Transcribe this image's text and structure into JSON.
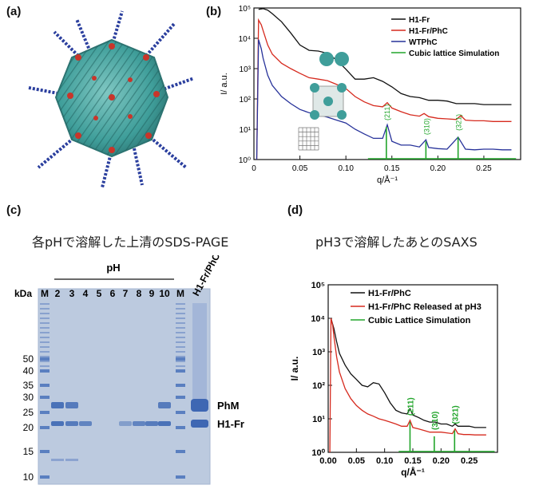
{
  "panels": {
    "a": "(a)",
    "b": "(b)",
    "c": "(c)",
    "d": "(d)"
  },
  "colors": {
    "black": "#111111",
    "red": "#d62a1e",
    "blue": "#27329a",
    "green": "#22a52b",
    "gel_bg": "#b9c8dd",
    "band": "#4a72b8"
  },
  "chart_data": [
    {
      "panel": "b",
      "type": "line",
      "xlabel": "q/Å⁻¹",
      "ylabel": "I/ a.u.",
      "yscale": "log",
      "xlim": [
        0,
        0.29
      ],
      "ylim": [
        1,
        100000
      ],
      "xticks": [
        "0",
        "0.05",
        "0.10",
        "0.15",
        "0.20",
        "0.25"
      ],
      "yticks": [
        "10⁰",
        "10¹",
        "10²",
        "10³",
        "10⁴",
        "10⁵"
      ],
      "legend_position": "top-right",
      "series": [
        {
          "name": "H1-Fr",
          "color": "#111111",
          "x": [
            0.005,
            0.01,
            0.015,
            0.02,
            0.03,
            0.04,
            0.05,
            0.06,
            0.07,
            0.08,
            0.09,
            0.1,
            0.11,
            0.12,
            0.13,
            0.14,
            0.15,
            0.16,
            0.17,
            0.18,
            0.19,
            0.2,
            0.21,
            0.22,
            0.23,
            0.24,
            0.25,
            0.26,
            0.27,
            0.28
          ],
          "y": [
            90000,
            95000,
            85000,
            65000,
            35000,
            15000,
            6000,
            4000,
            3800,
            3200,
            1900,
            950,
            450,
            450,
            500,
            380,
            250,
            150,
            120,
            110,
            90,
            90,
            85,
            70,
            70,
            70,
            65,
            65,
            65,
            65
          ]
        },
        {
          "name": "H1-Fr/PhC",
          "color": "#d62a1e",
          "x": [
            0.003,
            0.005,
            0.008,
            0.01,
            0.015,
            0.02,
            0.03,
            0.04,
            0.05,
            0.06,
            0.07,
            0.08,
            0.09,
            0.1,
            0.11,
            0.12,
            0.13,
            0.14,
            0.145,
            0.15,
            0.16,
            0.17,
            0.18,
            0.185,
            0.19,
            0.2,
            0.21,
            0.22,
            0.225,
            0.23,
            0.24,
            0.25,
            0.26,
            0.27,
            0.28
          ],
          "y": [
            1,
            40000,
            28000,
            18000,
            6000,
            3000,
            1500,
            1000,
            700,
            500,
            450,
            400,
            300,
            220,
            120,
            80,
            60,
            55,
            75,
            50,
            38,
            30,
            27,
            33,
            26,
            23,
            22,
            21,
            28,
            20,
            19,
            19,
            18,
            18,
            18
          ]
        },
        {
          "name": "WTPhC",
          "color": "#27329a",
          "x": [
            0.003,
            0.005,
            0.008,
            0.01,
            0.015,
            0.02,
            0.03,
            0.04,
            0.05,
            0.06,
            0.07,
            0.08,
            0.09,
            0.1,
            0.11,
            0.12,
            0.13,
            0.14,
            0.145,
            0.15,
            0.16,
            0.17,
            0.18,
            0.187,
            0.19,
            0.2,
            0.21,
            0.222,
            0.23,
            0.24,
            0.25,
            0.26,
            0.27,
            0.28
          ],
          "y": [
            1,
            9000,
            4500,
            2200,
            600,
            280,
            120,
            70,
            45,
            35,
            30,
            25,
            20,
            16,
            10,
            7,
            5,
            5,
            14,
            4,
            3,
            3,
            2.6,
            4.5,
            2.5,
            2.3,
            2.2,
            5.5,
            2.2,
            2.1,
            2.2,
            2.2,
            2.1,
            2.1
          ]
        },
        {
          "name": "Cubic lattice Simulation",
          "color": "#22a52b",
          "kind": "stick",
          "x": [
            0.144,
            0.187,
            0.222
          ],
          "y": [
            12,
            4,
            5.5
          ]
        }
      ],
      "peak_labels": [
        "(211)",
        "(310)",
        "(321)"
      ]
    },
    {
      "panel": "d",
      "type": "line",
      "xlabel": "q/Å⁻¹",
      "ylabel": "I/ a.u.",
      "yscale": "log",
      "xlim": [
        0,
        0.3
      ],
      "ylim": [
        1,
        100000
      ],
      "xticks": [
        "0.00",
        "0.05",
        "0.10",
        "0.15",
        "0.20",
        "0.25"
      ],
      "yticks": [
        "10⁰",
        "10¹",
        "10²",
        "10³",
        "10⁴",
        "10⁵"
      ],
      "legend_position": "top-right",
      "series": [
        {
          "name": "H1-Fr/PhC",
          "color": "#111111",
          "x": [
            0.005,
            0.01,
            0.015,
            0.02,
            0.03,
            0.04,
            0.05,
            0.06,
            0.07,
            0.08,
            0.09,
            0.1,
            0.11,
            0.12,
            0.13,
            0.14,
            0.145,
            0.15,
            0.16,
            0.17,
            0.18,
            0.19,
            0.2,
            0.21,
            0.22,
            0.225,
            0.23,
            0.24,
            0.25,
            0.26,
            0.27,
            0.28
          ],
          "y": [
            10000,
            5000,
            2000,
            900,
            400,
            220,
            150,
            100,
            90,
            120,
            110,
            60,
            30,
            18,
            15,
            14,
            20,
            13,
            11,
            9,
            8,
            8,
            7,
            7,
            6,
            7,
            6,
            6,
            6,
            5.5,
            5.5,
            5.5
          ]
        },
        {
          "name": "H1-Fr/PhC Released at pH3",
          "color": "#d62a1e",
          "x": [
            0.003,
            0.005,
            0.008,
            0.01,
            0.015,
            0.02,
            0.03,
            0.04,
            0.05,
            0.06,
            0.07,
            0.08,
            0.09,
            0.1,
            0.11,
            0.12,
            0.13,
            0.14,
            0.145,
            0.15,
            0.16,
            0.17,
            0.18,
            0.19,
            0.2,
            0.21,
            0.22,
            0.225,
            0.23,
            0.24,
            0.25,
            0.26,
            0.27,
            0.28
          ],
          "y": [
            1,
            10000,
            6000,
            3000,
            700,
            250,
            80,
            40,
            25,
            18,
            14,
            12,
            10,
            9,
            8,
            7,
            6,
            6,
            9,
            5.5,
            5,
            4.5,
            4,
            4,
            4,
            3.8,
            3.6,
            5,
            3.6,
            3.4,
            3.4,
            3.3,
            3.3,
            3.3
          ]
        },
        {
          "name": "Cubic Lattice Simulation",
          "color": "#22a52b",
          "kind": "stick",
          "x": [
            0.145,
            0.188,
            0.224
          ],
          "y": [
            8,
            3,
            4.5
          ]
        }
      ],
      "peak_labels": [
        "(211)",
        "(310)",
        "(321)"
      ]
    }
  ],
  "gel": {
    "caption": "各pHで溶解した上清のSDS-PAGE",
    "ph_label": "pH",
    "kda_label": "kDa",
    "lane_labels": [
      "M",
      "2",
      "3",
      "4",
      "5",
      "6",
      "7",
      "8",
      "9",
      "10",
      "M"
    ],
    "sample_label": "H1-Fr/PhC",
    "markers": [
      "50",
      "40",
      "35",
      "30",
      "25",
      "20",
      "15",
      "10"
    ],
    "band_labels": [
      "PhM",
      "H1-Fr"
    ]
  },
  "saxs_caption": "pH3で溶解したあとのSAXS"
}
